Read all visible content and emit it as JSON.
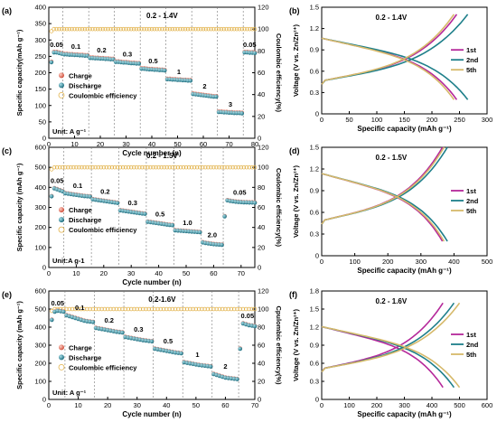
{
  "colors": {
    "charge": "#e07a6a",
    "discharge": "#3a8fa0",
    "ce": "#e2b24a",
    "c1": "#b5289a",
    "c2": "#1e7f8a",
    "c3": "#d6b96a"
  },
  "chart_data": [
    {
      "id": "a",
      "panel_label": "(a)",
      "type": "scatter",
      "voltage_window": "0.2 - 1.4V",
      "xlabel": "Cycle number (n)",
      "ylabel": "Specific capacity(mAh g⁻¹)",
      "y2label": "Coulombic efficiency(%)",
      "xlim": [
        0,
        80
      ],
      "ylim": [
        0,
        400
      ],
      "y2lim": [
        0,
        120
      ],
      "xticks": [
        0,
        10,
        20,
        30,
        40,
        50,
        60,
        70,
        80
      ],
      "yticks": [
        0,
        50,
        100,
        150,
        200,
        250,
        300,
        350,
        400
      ],
      "y2ticks": [
        0,
        20,
        40,
        60,
        80,
        100,
        120
      ],
      "unit_label": "Unit: A g⁻¹",
      "legend": [
        "Charge",
        "Discharge",
        "Coulombic efficiency"
      ],
      "segments": [
        {
          "rate": "0.05",
          "start": 1,
          "end": 5,
          "cap": [
            232,
            262,
            262,
            260,
            258
          ]
        },
        {
          "rate": "0.1",
          "start": 6,
          "end": 15,
          "cap": [
            256,
            256,
            255,
            255,
            254,
            254,
            253,
            253,
            252,
            252
          ]
        },
        {
          "rate": "0.2",
          "start": 16,
          "end": 25,
          "cap": [
            245,
            245,
            244,
            244,
            243,
            243,
            242,
            242,
            241,
            241
          ]
        },
        {
          "rate": "0.3",
          "start": 26,
          "end": 35,
          "cap": [
            233,
            233,
            232,
            231,
            231,
            230,
            229,
            229,
            228,
            228
          ]
        },
        {
          "rate": "0.5",
          "start": 36,
          "end": 45,
          "cap": [
            212,
            212,
            211,
            210,
            210,
            209,
            209,
            208,
            208,
            207
          ]
        },
        {
          "rate": "1",
          "start": 46,
          "end": 55,
          "cap": [
            180,
            180,
            179,
            179,
            178,
            178,
            177,
            177,
            176,
            176
          ]
        },
        {
          "rate": "2",
          "start": 56,
          "end": 65,
          "cap": [
            135,
            134,
            133,
            132,
            131,
            130,
            129,
            128,
            127,
            127
          ]
        },
        {
          "rate": "3",
          "start": 66,
          "end": 75,
          "cap": [
            80,
            80,
            79,
            79,
            78,
            78,
            77,
            77,
            77,
            76
          ]
        },
        {
          "rate": "0.05",
          "start": 76,
          "end": 80,
          "cap": [
            262,
            262,
            261,
            261,
            260
          ]
        }
      ],
      "ce_value": 100
    },
    {
      "id": "b",
      "panel_label": "(b)",
      "type": "line",
      "voltage_window": "0.2 - 1.4V",
      "xlabel": "Specific capacity (mAh g⁻¹)",
      "ylabel": "Voltage (V vs. Zn/Zn²⁺)",
      "xlim": [
        0,
        300
      ],
      "ylim": [
        0.0,
        1.5
      ],
      "xticks": [
        0,
        50,
        100,
        150,
        200,
        250,
        300
      ],
      "yticks": [
        0.0,
        0.3,
        0.6,
        0.9,
        1.2,
        1.5
      ],
      "series": [
        {
          "name": "1st",
          "cap": 245
        },
        {
          "name": "2nd",
          "cap": 265
        },
        {
          "name": "5th",
          "cap": 240
        }
      ],
      "vmin": 0.2,
      "vmax": 1.4
    },
    {
      "id": "c",
      "panel_label": "(c)",
      "type": "scatter",
      "voltage_window": "0.2 - 1.5V",
      "xlabel": "Cycle number (n)",
      "ylabel": "Specific capacity (mAh g⁻¹)",
      "y2label": "Coulombic efficiency(%)",
      "xlim": [
        0,
        75
      ],
      "ylim": [
        0,
        600
      ],
      "y2lim": [
        0,
        120
      ],
      "xticks": [
        0,
        10,
        20,
        30,
        40,
        50,
        60,
        70
      ],
      "yticks": [
        0,
        100,
        200,
        300,
        400,
        500,
        600
      ],
      "y2ticks": [
        0,
        20,
        40,
        60,
        80,
        100,
        120
      ],
      "unit_label": "Unit:A g-1",
      "legend": [
        "Charge",
        "Discharge",
        "Coulombic efficiency"
      ],
      "segments": [
        {
          "rate": "0.05",
          "start": 1,
          "end": 5,
          "cap": [
            355,
            395,
            390,
            385,
            380
          ]
        },
        {
          "rate": "0.1",
          "start": 6,
          "end": 15,
          "cap": [
            370,
            368,
            366,
            364,
            362,
            360,
            358,
            356,
            355,
            354
          ]
        },
        {
          "rate": "0.2",
          "start": 16,
          "end": 25,
          "cap": [
            340,
            338,
            336,
            334,
            332,
            330,
            328,
            326,
            324,
            322
          ]
        },
        {
          "rate": "0.3",
          "start": 26,
          "end": 35,
          "cap": [
            285,
            283,
            281,
            279,
            277,
            275,
            273,
            271,
            269,
            268
          ]
        },
        {
          "rate": "0.5",
          "start": 36,
          "end": 45,
          "cap": [
            228,
            226,
            224,
            222,
            220,
            218,
            216,
            214,
            212,
            211
          ]
        },
        {
          "rate": "1.0",
          "start": 46,
          "end": 55,
          "cap": [
            185,
            184,
            183,
            182,
            181,
            180,
            179,
            178,
            177,
            176
          ]
        },
        {
          "rate": "2.0",
          "start": 56,
          "end": 63,
          "cap": [
            125,
            122,
            120,
            118,
            116,
            115,
            114,
            113
          ]
        },
        {
          "rate": "0.05",
          "start": 64,
          "end": 75,
          "cap": [
            255,
            335,
            332,
            330,
            328,
            327,
            326,
            325,
            325,
            324,
            324,
            323
          ]
        }
      ],
      "ce_value": 100
    },
    {
      "id": "d",
      "panel_label": "(d)",
      "type": "line",
      "voltage_window": "0.2 - 1.5V",
      "xlabel": "Specific capacity (mAh g⁻¹)",
      "ylabel": "Voltage (V vs. Zn/Zn²⁺)",
      "xlim": [
        0,
        500
      ],
      "ylim": [
        0.0,
        1.5
      ],
      "xticks": [
        0,
        100,
        200,
        300,
        400,
        500
      ],
      "yticks": [
        0.0,
        0.3,
        0.6,
        0.9,
        1.2,
        1.5
      ],
      "series": [
        {
          "name": "1st",
          "cap": 365
        },
        {
          "name": "2nd",
          "cap": 380
        },
        {
          "name": "5th",
          "cap": 370
        }
      ],
      "vmin": 0.2,
      "vmax": 1.5
    },
    {
      "id": "e",
      "panel_label": "(e)",
      "type": "scatter",
      "voltage_window": "0.2-1.6V",
      "xlabel": "Cycle number (n)",
      "ylabel": "Specific capacity (mAh g⁻¹)",
      "y2label": "Cpulombic efficiency(%)",
      "xlim": [
        0,
        70
      ],
      "ylim": [
        0,
        600
      ],
      "y2lim": [
        0,
        120
      ],
      "xticks": [
        0,
        10,
        20,
        30,
        40,
        50,
        60,
        70
      ],
      "yticks": [
        0,
        100,
        200,
        300,
        400,
        500,
        600
      ],
      "y2ticks": [
        0,
        20,
        40,
        60,
        80,
        100,
        120
      ],
      "unit_label": "Unit: A g⁻¹",
      "legend": [
        "Charge",
        "Discharge",
        "Coulombic efficiency"
      ],
      "segments": [
        {
          "rate": "0.05",
          "start": 1,
          "end": 5,
          "cap": [
            440,
            485,
            490,
            488,
            485
          ]
        },
        {
          "rate": "0.1",
          "start": 6,
          "end": 15,
          "cap": [
            465,
            460,
            455,
            450,
            445,
            440,
            435,
            432,
            430,
            428
          ]
        },
        {
          "rate": "0.2",
          "start": 16,
          "end": 25,
          "cap": [
            395,
            392,
            389,
            386,
            383,
            380,
            377,
            374,
            372,
            370
          ]
        },
        {
          "rate": "0.3",
          "start": 26,
          "end": 35,
          "cap": [
            345,
            342,
            339,
            336,
            333,
            330,
            327,
            325,
            323,
            321
          ]
        },
        {
          "rate": "0.5",
          "start": 36,
          "end": 45,
          "cap": [
            280,
            277,
            274,
            271,
            268,
            265,
            262,
            259,
            257,
            255
          ]
        },
        {
          "rate": "1",
          "start": 46,
          "end": 55,
          "cap": [
            205,
            202,
            199,
            196,
            193,
            190,
            188,
            186,
            184,
            182
          ]
        },
        {
          "rate": "2",
          "start": 56,
          "end": 64,
          "cap": [
            140,
            135,
            130,
            125,
            120,
            118,
            116,
            114,
            112
          ]
        },
        {
          "rate": "0.05",
          "start": 65,
          "end": 70,
          "cap": [
            280,
            420,
            415,
            410,
            408,
            405
          ]
        }
      ],
      "ce_value": 100
    },
    {
      "id": "f",
      "panel_label": "(f)",
      "type": "line",
      "voltage_window": "0.2 - 1.6V",
      "xlabel": "Specific capacity (mAh g⁻¹)",
      "ylabel": "Voltage (V vs. Zn/Zn²⁺)",
      "xlim": [
        0,
        600
      ],
      "ylim": [
        0.0,
        1.8
      ],
      "xticks": [
        0,
        100,
        200,
        300,
        400,
        500,
        600
      ],
      "yticks": [
        0.0,
        0.3,
        0.6,
        0.9,
        1.2,
        1.5,
        1.8
      ],
      "series": [
        {
          "name": "1st",
          "cap": 440
        },
        {
          "name": "2nd",
          "cap": 480
        },
        {
          "name": "5th",
          "cap": 500
        }
      ],
      "vmin": 0.2,
      "vmax": 1.6
    }
  ]
}
